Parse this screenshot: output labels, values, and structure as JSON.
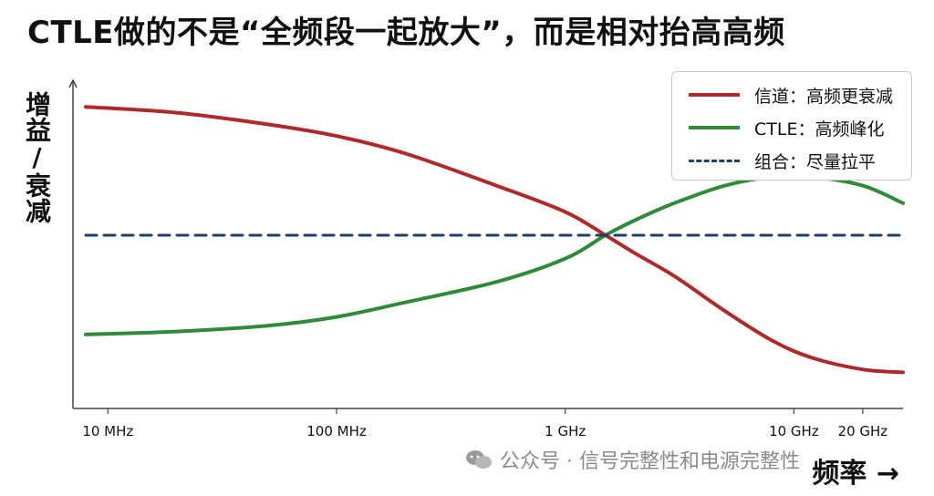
{
  "title": "CTLE做的不是“全频段一起放大”，而是相对抬高高频",
  "ylabel": "增益/衰减",
  "xlabel": "频率 →",
  "watermark": "公众号 · 信号完整性和电源完整性",
  "legend": [
    {
      "label": "信道：高频更衰减",
      "color": "#b0292a",
      "style": "solid"
    },
    {
      "label": "CTLE：高频峰化",
      "color": "#2f8a3a",
      "style": "solid"
    },
    {
      "label": "组合：尽量拉平",
      "color": "#1f3f66",
      "style": "dashed"
    }
  ],
  "chart_data": {
    "type": "line",
    "title": "CTLE做的不是“全频段一起放大”，而是相对抬高高频",
    "xlabel": "频率 →",
    "ylabel": "增益/衰减",
    "xscale": "log",
    "xtick_labels": [
      "10 MHz",
      "100 MHz",
      "1 GHz",
      "10 GHz",
      "20 GHz"
    ],
    "xtick_values_hz": [
      10000000,
      100000000,
      1000000000,
      10000000000,
      20000000000
    ],
    "xlim_hz": [
      8000000,
      30000000000
    ],
    "ylim": [
      0,
      100
    ],
    "grid": false,
    "legend_position": "top-right",
    "series": [
      {
        "name": "信道：高频更衰减",
        "color": "#b0292a",
        "style": "solid",
        "x_hz": [
          8000000,
          20000000,
          50000000,
          100000000,
          200000000,
          500000000,
          1000000000,
          1500000000,
          2000000000,
          3000000000,
          5000000000,
          8000000000,
          12000000000,
          20000000000,
          30000000000
        ],
        "y": [
          94,
          92,
          88,
          84,
          78,
          67,
          58,
          50,
          44,
          36,
          24,
          14,
          8,
          4,
          3
        ]
      },
      {
        "name": "CTLE：高频峰化",
        "color": "#2f8a3a",
        "style": "solid",
        "x_hz": [
          8000000,
          20000000,
          50000000,
          100000000,
          200000000,
          500000000,
          1000000000,
          1500000000,
          2000000000,
          3000000000,
          5000000000,
          8000000000,
          12000000000,
          20000000000,
          30000000000
        ],
        "y": [
          16,
          17,
          19,
          22,
          27,
          34,
          42,
          50,
          55,
          61,
          67,
          70,
          70,
          67,
          61
        ]
      },
      {
        "name": "组合：尽量拉平",
        "color": "#1f3f66",
        "style": "dashed",
        "x_hz": [
          8000000,
          30000000000
        ],
        "y": [
          50,
          50
        ]
      }
    ]
  }
}
